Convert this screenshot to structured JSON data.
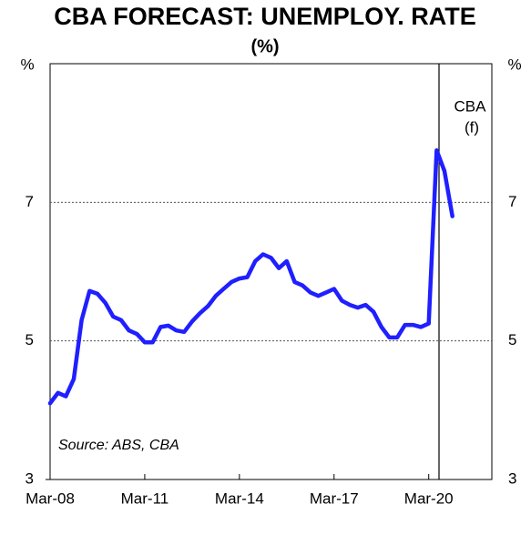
{
  "chart_data": {
    "type": "line",
    "title": "CBA FORECAST: UNEMPLOY. RATE",
    "subtitle": "(%)",
    "y_label": "%",
    "y2_label": "%",
    "annotations": [
      "CBA",
      "(f)",
      "Source: ABS, CBA"
    ],
    "categories": [
      "Mar-08",
      null,
      null,
      null,
      null,
      null,
      null,
      null,
      null,
      null,
      null,
      null,
      "Mar-11",
      null,
      null,
      null,
      null,
      null,
      null,
      null,
      null,
      null,
      null,
      null,
      "Mar-14",
      null,
      null,
      null,
      null,
      null,
      null,
      null,
      null,
      null,
      null,
      null,
      "Mar-17",
      null,
      null,
      null,
      null,
      null,
      null,
      null,
      null,
      null,
      null,
      null,
      "Mar-20",
      null,
      null,
      null,
      null,
      null,
      null,
      null
    ],
    "series": [
      {
        "name": "Unemployment rate",
        "color": "#1f1fff",
        "values": [
          4.1,
          4.25,
          4.2,
          4.45,
          5.3,
          5.72,
          5.68,
          5.55,
          5.35,
          5.3,
          5.15,
          5.1,
          4.98,
          4.98,
          5.2,
          5.22,
          5.15,
          5.13,
          5.28,
          5.4,
          5.5,
          5.65,
          5.75,
          5.85,
          5.9,
          5.92,
          6.15,
          6.25,
          6.2,
          6.05,
          6.15,
          5.85,
          5.8,
          5.7,
          5.65,
          5.7,
          5.75,
          5.58,
          5.52,
          5.48,
          5.52,
          5.42,
          5.2,
          5.05,
          5.05,
          5.23,
          5.23,
          5.2,
          5.25,
          7.75,
          7.45,
          6.8,
          null,
          null,
          null,
          null
        ]
      }
    ],
    "ylim": [
      3,
      9
    ],
    "yticks": [
      3,
      5,
      7
    ],
    "grid": true
  }
}
